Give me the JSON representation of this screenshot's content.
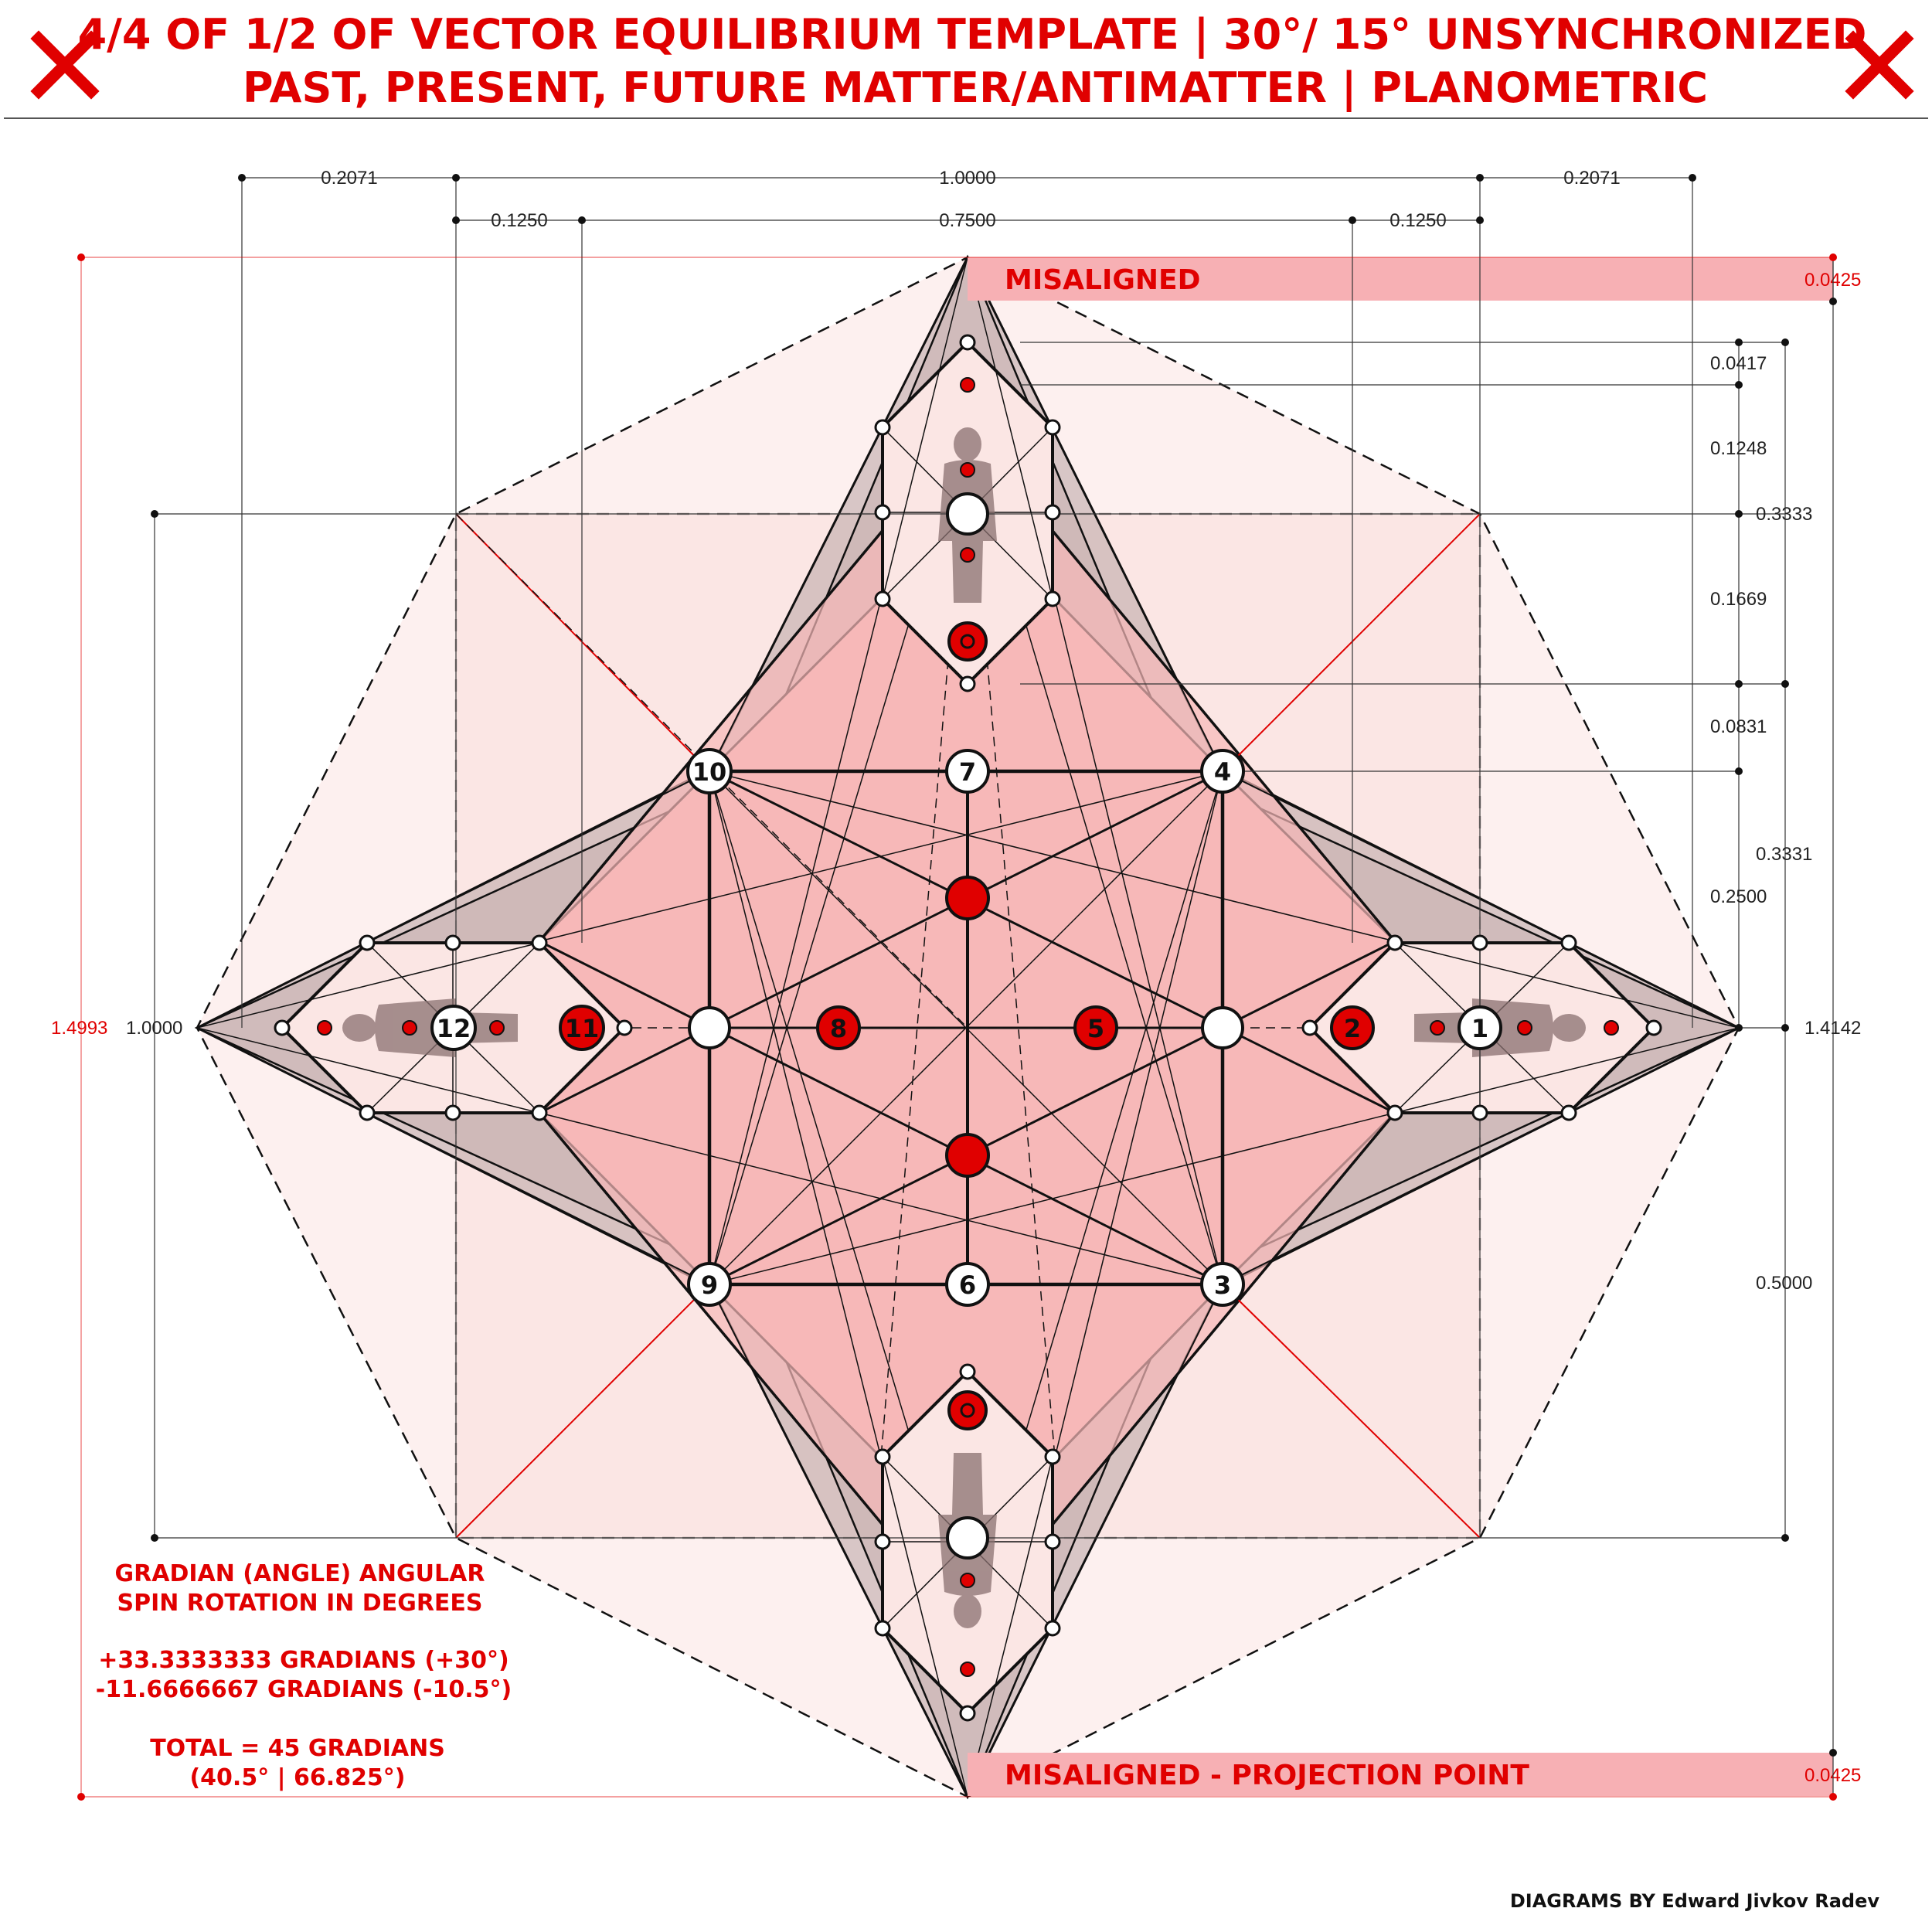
{
  "header": {
    "title_line1": "4/4 OF 1/2 OF VECTOR EQUILIBRIUM TEMPLATE | 30°/ 15° UNSYNCHRONIZED",
    "title_line2": "PAST, PRESENT, FUTURE MATTER/ANTIMATTER | PLANOMETRIC",
    "left_mark": "close-icon",
    "right_mark": "close-icon"
  },
  "colors": {
    "accent": "#e00000",
    "pink_fill": "#f7b8b8",
    "light_pink": "#fbe6e4",
    "grey_fill": "#b9a4a4"
  },
  "dimensions": {
    "top_row1": [
      "0.2071",
      "1.0000",
      "0.2071"
    ],
    "top_row2": [
      "0.1250",
      "0.7500",
      "0.1250"
    ],
    "right_column": [
      "0.0417",
      "0.1248",
      "0.3333",
      "0.1669",
      "0.0831",
      "0.3331",
      "0.2500",
      "0.5000"
    ],
    "left_total_red": "1.4993",
    "left_total": "1.0000",
    "right_total": "1.4142",
    "band_value_top": "0.0425",
    "band_value_bottom": "0.0425"
  },
  "bands": {
    "top_label": "MISALIGNED",
    "bottom_label": "MISALIGNED - PROJECTION POINT"
  },
  "nodes": {
    "n1": "1",
    "n2": "2",
    "n3": "3",
    "n4": "4",
    "n5": "5",
    "n6": "6",
    "n7": "7",
    "n8": "8",
    "n9": "9",
    "n10": "10",
    "n11": "11",
    "n12": "12"
  },
  "notes": {
    "line1": "GRADIAN (ANGLE) ANGULAR",
    "line2": "SPIN ROTATION IN DEGREES",
    "line3": "+33.3333333 GRADIANS (+30°)",
    "line4": "-11.6666667 GRADIANS (-10.5°)",
    "line5": "TOTAL = 45 GRADIANS",
    "line6": "(40.5° | 66.825°)"
  },
  "credit": "DIAGRAMS BY Edward Jivkov Radev"
}
